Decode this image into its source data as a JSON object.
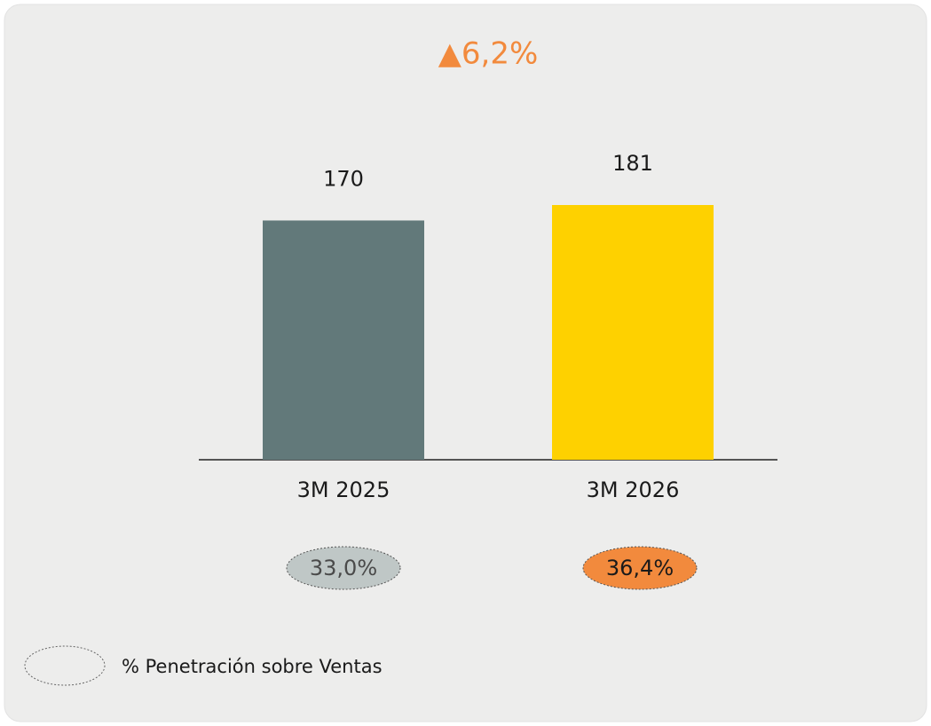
{
  "chart_data": {
    "type": "bar",
    "title": "▲6,2%",
    "categories": [
      "3M 2025",
      "3M 2026"
    ],
    "values": [
      170,
      181
    ],
    "colors": [
      "#62797a",
      "#fed100"
    ],
    "penetration": {
      "name": "% Penetración sobre Ventas",
      "values": [
        33.0,
        36.4
      ],
      "value_labels": [
        "33,0%",
        "36,4%"
      ],
      "colors": [
        "#bfc7c6",
        "#f28a3d"
      ]
    }
  }
}
